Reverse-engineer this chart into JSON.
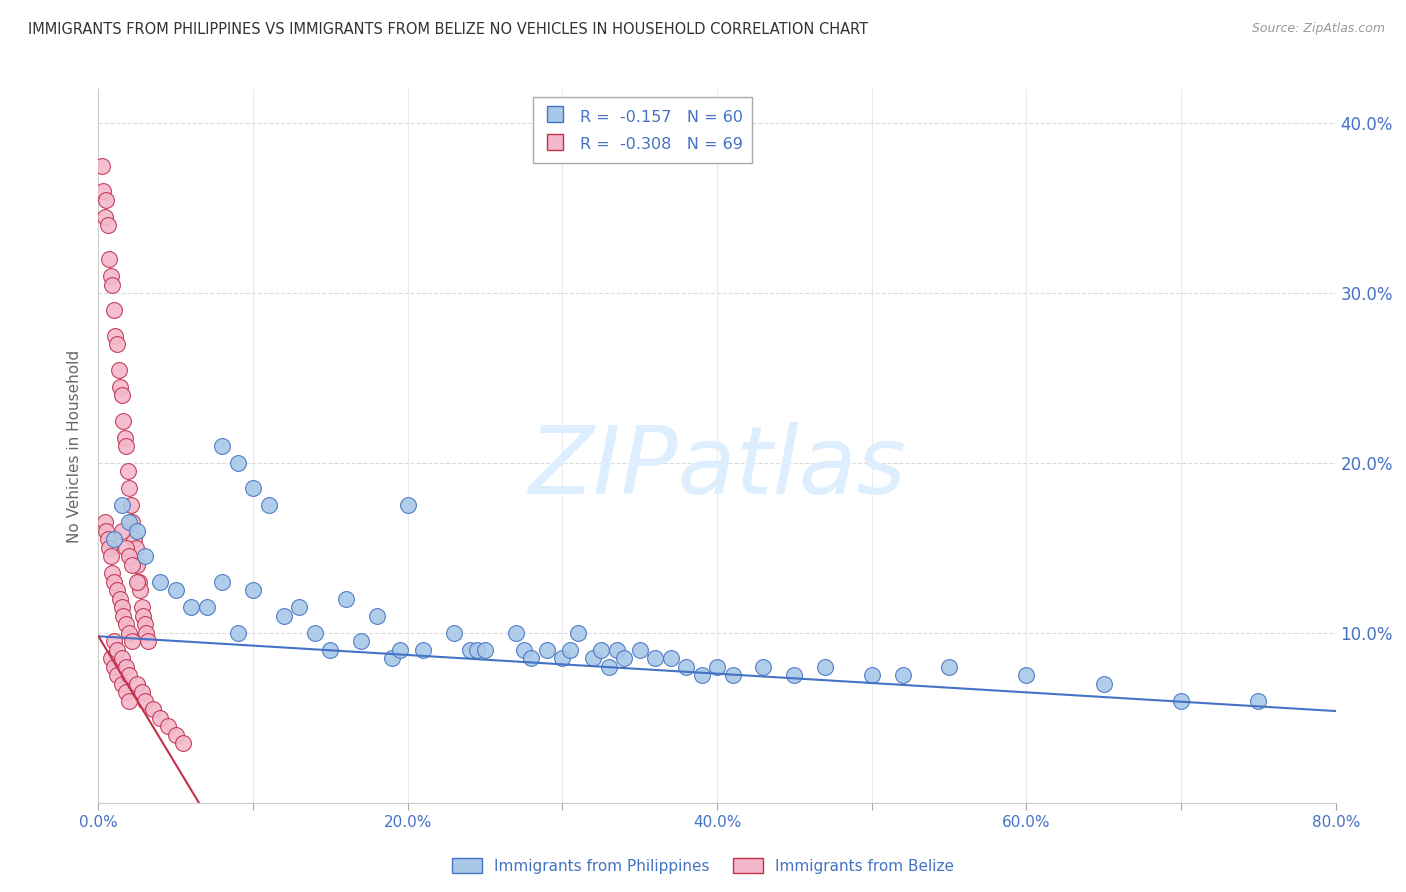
{
  "title": "IMMIGRANTS FROM PHILIPPINES VS IMMIGRANTS FROM BELIZE NO VEHICLES IN HOUSEHOLD CORRELATION CHART",
  "source": "Source: ZipAtlas.com",
  "ylabel": "No Vehicles in Household",
  "xlim": [
    0.0,
    0.8
  ],
  "ylim": [
    0.0,
    0.42
  ],
  "xticks": [
    0.0,
    0.1,
    0.2,
    0.3,
    0.4,
    0.5,
    0.6,
    0.7,
    0.8
  ],
  "xtick_labels": [
    "0.0%",
    "",
    "20.0%",
    "",
    "40.0%",
    "",
    "60.0%",
    "",
    "80.0%"
  ],
  "yticks": [
    0.0,
    0.1,
    0.2,
    0.3,
    0.4
  ],
  "ytick_labels_right": [
    "",
    "10.0%",
    "20.0%",
    "30.0%",
    "40.0%"
  ],
  "legend_entry1": "R =  -0.157   N = 60",
  "legend_entry2": "R =  -0.308   N = 69",
  "legend_label1": "Immigrants from Philippines",
  "legend_label2": "Immigrants from Belize",
  "color_philippines": "#a8c8e8",
  "color_belize": "#f4b8cc",
  "line_color_philippines": "#4472c4",
  "line_color_belize": "#c0304a",
  "background_color": "#ffffff",
  "grid_color": "#cccccc",
  "watermark_color": "#ddeeff",
  "watermark_text": "ZIPatlas",
  "title_fontsize": 11,
  "tick_label_color": "#4472c4",
  "ylabel_color": "#666666",
  "phil_line_x": [
    0.0,
    0.8
  ],
  "phil_line_y": [
    0.098,
    0.054
  ],
  "belize_line_x": [
    0.0,
    0.065
  ],
  "belize_line_y": [
    0.098,
    0.0
  ],
  "philippines_x": [
    0.01,
    0.015,
    0.02,
    0.025,
    0.03,
    0.04,
    0.05,
    0.06,
    0.07,
    0.08,
    0.09,
    0.1,
    0.12,
    0.13,
    0.14,
    0.15,
    0.16,
    0.17,
    0.18,
    0.19,
    0.195,
    0.2,
    0.21,
    0.23,
    0.24,
    0.245,
    0.25,
    0.27,
    0.275,
    0.28,
    0.29,
    0.3,
    0.305,
    0.31,
    0.32,
    0.325,
    0.33,
    0.335,
    0.34,
    0.35,
    0.36,
    0.37,
    0.38,
    0.39,
    0.4,
    0.41,
    0.43,
    0.45,
    0.47,
    0.5,
    0.52,
    0.55,
    0.6,
    0.65,
    0.7,
    0.75,
    0.08,
    0.09,
    0.1,
    0.11
  ],
  "philippines_y": [
    0.155,
    0.175,
    0.165,
    0.16,
    0.145,
    0.13,
    0.125,
    0.115,
    0.115,
    0.13,
    0.1,
    0.125,
    0.11,
    0.115,
    0.1,
    0.09,
    0.12,
    0.095,
    0.11,
    0.085,
    0.09,
    0.175,
    0.09,
    0.1,
    0.09,
    0.09,
    0.09,
    0.1,
    0.09,
    0.085,
    0.09,
    0.085,
    0.09,
    0.1,
    0.085,
    0.09,
    0.08,
    0.09,
    0.085,
    0.09,
    0.085,
    0.085,
    0.08,
    0.075,
    0.08,
    0.075,
    0.08,
    0.075,
    0.08,
    0.075,
    0.075,
    0.08,
    0.075,
    0.07,
    0.06,
    0.06,
    0.21,
    0.2,
    0.185,
    0.175
  ],
  "belize_x": [
    0.002,
    0.003,
    0.004,
    0.005,
    0.006,
    0.007,
    0.008,
    0.009,
    0.01,
    0.011,
    0.012,
    0.013,
    0.014,
    0.015,
    0.016,
    0.017,
    0.018,
    0.019,
    0.02,
    0.021,
    0.022,
    0.023,
    0.024,
    0.025,
    0.026,
    0.027,
    0.028,
    0.029,
    0.03,
    0.031,
    0.032,
    0.004,
    0.005,
    0.006,
    0.007,
    0.008,
    0.009,
    0.01,
    0.012,
    0.014,
    0.015,
    0.016,
    0.018,
    0.02,
    0.022,
    0.015,
    0.018,
    0.02,
    0.022,
    0.025,
    0.008,
    0.01,
    0.012,
    0.015,
    0.018,
    0.02,
    0.01,
    0.012,
    0.015,
    0.018,
    0.02,
    0.025,
    0.028,
    0.03,
    0.035,
    0.04,
    0.045,
    0.05,
    0.055
  ],
  "belize_y": [
    0.375,
    0.36,
    0.345,
    0.355,
    0.34,
    0.32,
    0.31,
    0.305,
    0.29,
    0.275,
    0.27,
    0.255,
    0.245,
    0.24,
    0.225,
    0.215,
    0.21,
    0.195,
    0.185,
    0.175,
    0.165,
    0.155,
    0.15,
    0.14,
    0.13,
    0.125,
    0.115,
    0.11,
    0.105,
    0.1,
    0.095,
    0.165,
    0.16,
    0.155,
    0.15,
    0.145,
    0.135,
    0.13,
    0.125,
    0.12,
    0.115,
    0.11,
    0.105,
    0.1,
    0.095,
    0.16,
    0.15,
    0.145,
    0.14,
    0.13,
    0.085,
    0.08,
    0.075,
    0.07,
    0.065,
    0.06,
    0.095,
    0.09,
    0.085,
    0.08,
    0.075,
    0.07,
    0.065,
    0.06,
    0.055,
    0.05,
    0.045,
    0.04,
    0.035
  ]
}
